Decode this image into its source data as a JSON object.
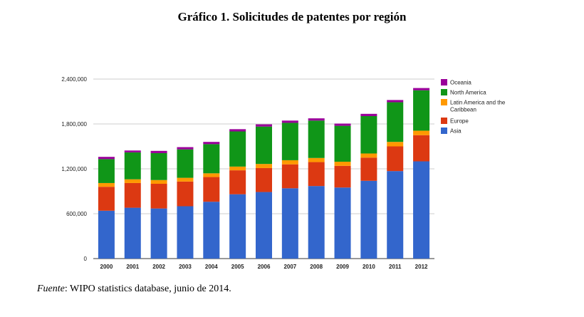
{
  "chart_data": {
    "type": "bar",
    "stacked": true,
    "title": "Gráfico 1. Solicitudes de patentes por región",
    "xlabel": "",
    "ylabel": "",
    "categories": [
      "2000",
      "2001",
      "2002",
      "2003",
      "2004",
      "2005",
      "2006",
      "2007",
      "2008",
      "2009",
      "2010",
      "2011",
      "2012"
    ],
    "ylim": [
      0,
      2400000
    ],
    "y_ticks": [
      0,
      600000,
      1200000,
      1800000,
      2400000
    ],
    "y_tick_labels": [
      "0",
      "600,000",
      "1,200,000",
      "1,800,000",
      "2,400,000"
    ],
    "grid": true,
    "legend_position": "right",
    "series": [
      {
        "name": "Asia",
        "color": "#3366cc",
        "values": [
          640000,
          680000,
          670000,
          700000,
          760000,
          860000,
          890000,
          940000,
          970000,
          950000,
          1040000,
          1170000,
          1300000
        ]
      },
      {
        "name": "Europe",
        "color": "#dc3912",
        "values": [
          320000,
          330000,
          330000,
          330000,
          330000,
          320000,
          320000,
          320000,
          320000,
          290000,
          310000,
          330000,
          350000
        ]
      },
      {
        "name": "Latin America and the Caribbean",
        "color": "#ff9900",
        "values": [
          50000,
          50000,
          50000,
          50000,
          50000,
          50000,
          55000,
          55000,
          55000,
          55000,
          55000,
          60000,
          60000
        ]
      },
      {
        "name": "North America",
        "color": "#109618",
        "values": [
          320000,
          360000,
          360000,
          380000,
          390000,
          470000,
          500000,
          500000,
          500000,
          480000,
          500000,
          530000,
          540000
        ]
      },
      {
        "name": "Oceania",
        "color": "#990099",
        "values": [
          30000,
          25000,
          30000,
          30000,
          30000,
          30000,
          30000,
          30000,
          30000,
          30000,
          30000,
          30000,
          30000
        ]
      }
    ],
    "legend_order": [
      "Oceania",
      "North America",
      "Latin America and the Caribbean",
      "Europe",
      "Asia"
    ]
  },
  "source_note": {
    "label": "Fuente",
    "text": ": WIPO statistics database, junio de 2014."
  }
}
